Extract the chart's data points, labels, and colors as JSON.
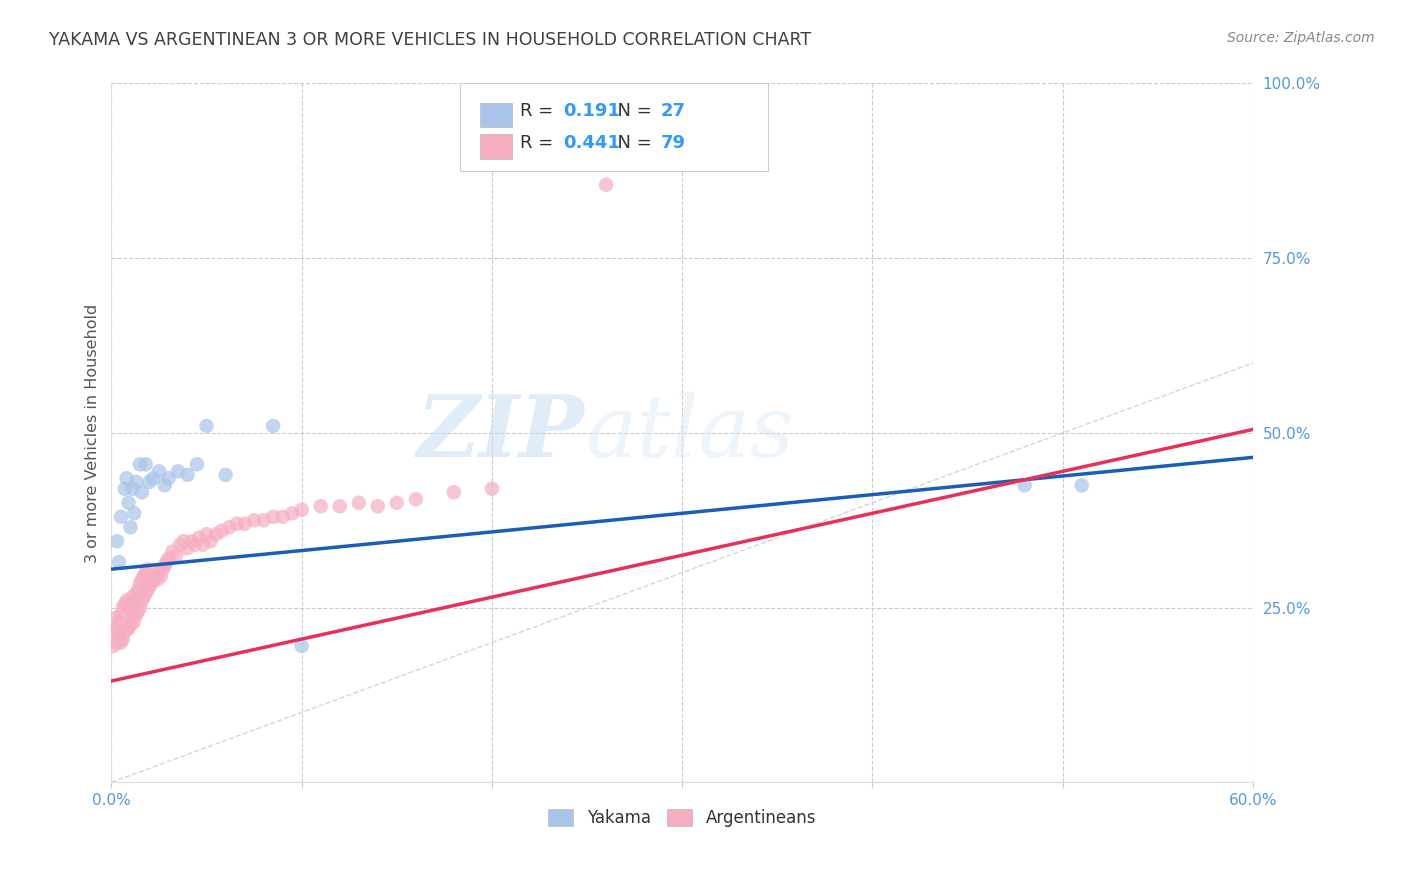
{
  "title": "YAKAMA VS ARGENTINEAN 3 OR MORE VEHICLES IN HOUSEHOLD CORRELATION CHART",
  "source": "Source: ZipAtlas.com",
  "ylabel": "3 or more Vehicles in Household",
  "xlim": [
    0.0,
    0.6
  ],
  "ylim": [
    0.0,
    1.0
  ],
  "x_ticks": [
    0.0,
    0.1,
    0.2,
    0.3,
    0.4,
    0.5,
    0.6
  ],
  "x_tick_labels": [
    "0.0%",
    "",
    "",
    "",
    "",
    "",
    "60.0%"
  ],
  "y_ticks_right": [
    0.25,
    0.5,
    0.75,
    1.0
  ],
  "y_tick_labels_right": [
    "25.0%",
    "50.0%",
    "75.0%",
    "100.0%"
  ],
  "watermark_zip": "ZIP",
  "watermark_atlas": "atlas",
  "legend_yakama_R": "0.191",
  "legend_yakama_N": "27",
  "legend_arg_R": "0.441",
  "legend_arg_N": "79",
  "yakama_color": "#a8c4e8",
  "argentinean_color": "#f5aec0",
  "trendline_yakama_color": "#1a5eb8",
  "trendline_arg_color": "#e8305a",
  "diagonal_color": "#cccccc",
  "background_color": "#ffffff",
  "grid_color": "#cccccc",
  "title_color": "#404040",
  "axis_label_color": "#555555",
  "tick_label_color_right": "#5599dd",
  "tick_label_color_bottom": "#5599dd",
  "source_color": "#888888",
  "yakama_x": [
    0.003,
    0.004,
    0.005,
    0.007,
    0.008,
    0.009,
    0.01,
    0.011,
    0.012,
    0.013,
    0.015,
    0.016,
    0.018,
    0.02,
    0.022,
    0.025,
    0.028,
    0.03,
    0.035,
    0.04,
    0.045,
    0.05,
    0.06,
    0.085,
    0.1,
    0.48,
    0.51
  ],
  "yakama_y": [
    0.345,
    0.315,
    0.38,
    0.42,
    0.435,
    0.4,
    0.365,
    0.42,
    0.385,
    0.43,
    0.455,
    0.415,
    0.455,
    0.43,
    0.435,
    0.445,
    0.425,
    0.435,
    0.445,
    0.44,
    0.455,
    0.51,
    0.44,
    0.51,
    0.195,
    0.425,
    0.425
  ],
  "arg_x": [
    0.001,
    0.002,
    0.002,
    0.003,
    0.003,
    0.004,
    0.004,
    0.005,
    0.005,
    0.006,
    0.006,
    0.007,
    0.007,
    0.008,
    0.008,
    0.009,
    0.009,
    0.01,
    0.01,
    0.011,
    0.011,
    0.012,
    0.012,
    0.013,
    0.013,
    0.014,
    0.014,
    0.015,
    0.015,
    0.016,
    0.016,
    0.017,
    0.017,
    0.018,
    0.018,
    0.019,
    0.019,
    0.02,
    0.021,
    0.022,
    0.023,
    0.024,
    0.025,
    0.026,
    0.027,
    0.028,
    0.029,
    0.03,
    0.032,
    0.034,
    0.036,
    0.038,
    0.04,
    0.042,
    0.044,
    0.046,
    0.048,
    0.05,
    0.052,
    0.055,
    0.058,
    0.062,
    0.066,
    0.07,
    0.075,
    0.08,
    0.085,
    0.09,
    0.095,
    0.1,
    0.11,
    0.12,
    0.13,
    0.14,
    0.15,
    0.16,
    0.18,
    0.2,
    0.26
  ],
  "arg_y": [
    0.195,
    0.215,
    0.235,
    0.2,
    0.22,
    0.21,
    0.23,
    0.2,
    0.24,
    0.205,
    0.25,
    0.215,
    0.255,
    0.22,
    0.26,
    0.22,
    0.25,
    0.225,
    0.245,
    0.235,
    0.265,
    0.23,
    0.26,
    0.24,
    0.27,
    0.245,
    0.275,
    0.25,
    0.285,
    0.26,
    0.29,
    0.265,
    0.295,
    0.27,
    0.3,
    0.275,
    0.305,
    0.28,
    0.285,
    0.29,
    0.295,
    0.29,
    0.3,
    0.295,
    0.305,
    0.31,
    0.315,
    0.32,
    0.33,
    0.325,
    0.34,
    0.345,
    0.335,
    0.345,
    0.34,
    0.35,
    0.34,
    0.355,
    0.345,
    0.355,
    0.36,
    0.365,
    0.37,
    0.37,
    0.375,
    0.375,
    0.38,
    0.38,
    0.385,
    0.39,
    0.395,
    0.395,
    0.4,
    0.395,
    0.4,
    0.405,
    0.415,
    0.42,
    0.855
  ],
  "trendline_yakama": [
    0.305,
    0.465
  ],
  "trendline_arg": [
    0.145,
    0.505
  ]
}
